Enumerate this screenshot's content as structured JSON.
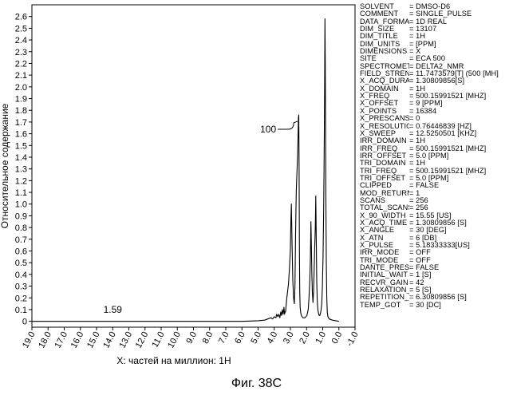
{
  "chart_data": {
    "type": "line",
    "title": "",
    "xlabel": "X: частей на миллион: 1H",
    "ylabel": "Относительное содержание",
    "xlim": [
      19.0,
      -1.0
    ],
    "ylim": [
      -0.05,
      2.7
    ],
    "x_ticks": [
      19.0,
      18.0,
      17.0,
      16.0,
      15.0,
      14.0,
      13.0,
      12.0,
      11.0,
      10.0,
      9.0,
      8.0,
      7.0,
      6.0,
      5.0,
      4.0,
      3.0,
      2.0,
      1.0,
      0,
      -1.0
    ],
    "x_tick_labels": [
      "19.0",
      "18.0",
      "17.0",
      "16.0",
      "15.0",
      "14.0",
      "13.0",
      "12.0",
      "11.0",
      "10.0",
      "9.0",
      "8.0",
      "7.0",
      "6.0",
      "5.0",
      "4.0",
      "3.0",
      "2.0",
      "1.0",
      "0.0",
      "-1.0"
    ],
    "y_ticks": [
      0,
      0.1,
      0.2,
      0.3,
      0.4,
      0.5,
      0.6,
      0.7,
      0.8,
      0.9,
      1.0,
      1.1,
      1.2,
      1.3,
      1.4,
      1.5,
      1.6,
      1.7,
      1.8,
      1.9,
      2.0,
      2.1,
      2.2,
      2.3,
      2.4,
      2.5,
      2.6
    ],
    "y_tick_labels": [
      "0",
      "0.1",
      "0.2",
      "0.3",
      "0.4",
      "0.5",
      "0.6",
      "0.7",
      "0.8",
      "0.9",
      "1.0",
      "1.1",
      "1.2",
      "1.3",
      "1.4",
      "1.5",
      "1.6",
      "1.7",
      "1.8",
      "1.9",
      "2.0",
      "2.1",
      "2.2",
      "2.3",
      "2.4",
      "2.5",
      "2.6"
    ],
    "series": [
      {
        "x": [
          19.0,
          6.0,
          5.0,
          4.6,
          4.4,
          4.2,
          4.1,
          4.0,
          3.9,
          3.85,
          3.78,
          3.72,
          3.65,
          3.6,
          3.55,
          3.5,
          3.45,
          3.4,
          3.36,
          3.34,
          3.3,
          3.26,
          3.22,
          3.18,
          3.12,
          3.06,
          3.0,
          2.97,
          2.94,
          2.9,
          2.85,
          2.8,
          2.76,
          2.72,
          2.68,
          2.64,
          2.6,
          2.56,
          2.53,
          2.5,
          2.48,
          2.46,
          2.44,
          2.42,
          2.4,
          2.36,
          2.32,
          2.28,
          2.22,
          2.1,
          1.98,
          1.9,
          1.85,
          1.8,
          1.76,
          1.73,
          1.7,
          1.67,
          1.64,
          1.6,
          1.57,
          1.54,
          1.5,
          1.46,
          1.43,
          1.4,
          1.37,
          1.34,
          1.3,
          1.26,
          1.22,
          1.18,
          1.12,
          1.06,
          1.02,
          0.98,
          0.95,
          0.92,
          0.9,
          0.88,
          0.86,
          0.84,
          0.82,
          0.8,
          0.78,
          0.75,
          0.72,
          0.68,
          0.6,
          0.4,
          0.2,
          0.0
        ],
        "y": [
          0.0,
          0.0,
          0.005,
          0.01,
          0.02,
          0.03,
          0.02,
          0.04,
          0.03,
          0.06,
          0.04,
          0.06,
          0.03,
          0.08,
          0.05,
          0.1,
          0.06,
          0.12,
          0.06,
          0.08,
          0.08,
          0.14,
          0.2,
          0.25,
          0.32,
          0.45,
          0.62,
          0.85,
          1.0,
          0.68,
          0.35,
          0.2,
          0.15,
          0.3,
          0.75,
          1.1,
          1.25,
          1.4,
          1.55,
          1.74,
          1.76,
          1.3,
          0.6,
          0.25,
          0.12,
          0.07,
          0.05,
          0.04,
          0.03,
          0.03,
          0.05,
          0.1,
          0.2,
          0.35,
          0.55,
          0.85,
          0.65,
          0.4,
          0.25,
          0.16,
          0.25,
          0.4,
          0.62,
          0.8,
          1.07,
          0.7,
          0.35,
          0.18,
          0.1,
          0.07,
          0.05,
          0.05,
          0.08,
          0.15,
          0.3,
          0.55,
          0.85,
          1.25,
          1.6,
          2.0,
          2.58,
          2.2,
          1.6,
          1.0,
          0.5,
          0.2,
          0.08,
          0.04,
          0.02,
          0.01,
          0.005,
          0.0
        ]
      }
    ],
    "annotations": [
      {
        "text": "100",
        "x": 2.5,
        "y": 1.72
      },
      {
        "text": "1.59",
        "x": 14.0,
        "y": 0.1
      }
    ],
    "grid": false
  },
  "parameters": [
    {
      "name": "SOLVENT",
      "value": "= DMSO-D6"
    },
    {
      "name": "COMMENT",
      "value": "= SINGLE_PULSE"
    },
    {
      "name": "DATA_FORMAT",
      "value": "= 1D REAL"
    },
    {
      "name": "DIM_SIZE",
      "value": "= 13107"
    },
    {
      "name": "DIM_TITLE",
      "value": "= 1H"
    },
    {
      "name": "DIM_UNITS",
      "value": "= [PPM]"
    },
    {
      "name": "DIMENSIONS",
      "value": "= X"
    },
    {
      "name": "SITE",
      "value": "= ECA 500"
    },
    {
      "name": "SPECTROMETER",
      "value": "= DELTA2_NMR"
    },
    {
      "name": "FIELD_STRENGTH",
      "value": "= 11.7473579[T] (500 [MH]"
    },
    {
      "name": "X_ACQ_DURATION",
      "value": "= 1.30809856[S]"
    },
    {
      "name": "X_DOMAIN",
      "value": "= 1H"
    },
    {
      "name": "X_FREQ",
      "value": "= 500.15991521 [MHZ]"
    },
    {
      "name": "X_OFFSET",
      "value": "= 9 [PPM]"
    },
    {
      "name": "X_POINTS",
      "value": "= 16384"
    },
    {
      "name": "X_PRESCANS",
      "value": "= 0"
    },
    {
      "name": "X_RESOLUTION",
      "value": "= 0.76446839 [HZ]"
    },
    {
      "name": "X_SWEEP",
      "value": "= 12.5250501 [KHZ]"
    },
    {
      "name": "IRR_DOMAIN",
      "value": "= 1H"
    },
    {
      "name": "IRR_FREQ",
      "value": "= 500.15991521 [MHZ]"
    },
    {
      "name": "IRR_OFFSET",
      "value": "= 5.0 [PPM]"
    },
    {
      "name": "TRI_DOMAIN",
      "value": "= 1H"
    },
    {
      "name": "TRI_FREQ",
      "value": "= 500.15991521 [MHZ]"
    },
    {
      "name": "TRI_OFFSET",
      "value": "= 5.0 [PPM]"
    },
    {
      "name": "CLIPPED",
      "value": "= FALSE"
    },
    {
      "name": "MOD_RETURN",
      "value": "= 1"
    },
    {
      "name": "SCANS",
      "value": "= 256"
    },
    {
      "name": "TOTAL_SCANS",
      "value": "= 256"
    },
    {
      "name": "X_90_WIDTH",
      "value": "= 15.55 [US]"
    },
    {
      "name": "X_ACQ_TIME",
      "value": "= 1.30809856 [S]"
    },
    {
      "name": "X_ANGLE",
      "value": "= 30 [DEG]"
    },
    {
      "name": "X_ATN",
      "value": "= 6 [DB]"
    },
    {
      "name": "X_PULSE",
      "value": "= 5.18333333[US]"
    },
    {
      "name": "IRR_MODE",
      "value": "= OFF"
    },
    {
      "name": "TRI_MODE",
      "value": "= OFF"
    },
    {
      "name": "DANTE_PRESAT",
      "value": "= FALSE"
    },
    {
      "name": "INITIAL_WAIT",
      "value": "= 1 [S]"
    },
    {
      "name": "RECVR_GAIN",
      "value": "= 42"
    },
    {
      "name": "RELAXATION_DELAY",
      "value": "= 5 [S]"
    },
    {
      "name": "REPETITION_TIME",
      "value": "= 6.30809856 [S]"
    },
    {
      "name": "TEMP_GOT",
      "value": "= 30 [DC]"
    }
  ],
  "figure_caption": "Фиг. 38C"
}
